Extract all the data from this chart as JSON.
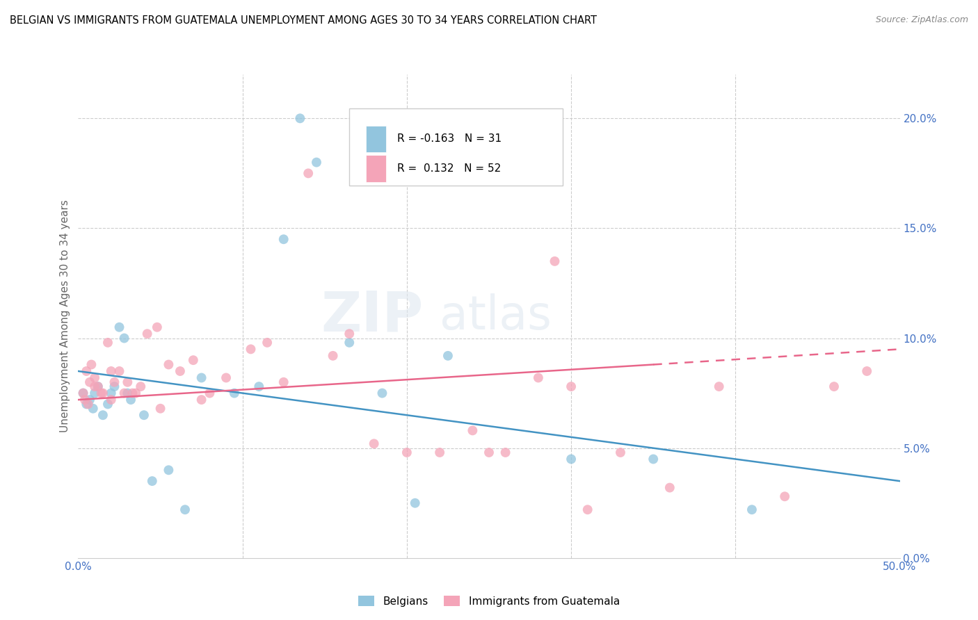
{
  "title": "BELGIAN VS IMMIGRANTS FROM GUATEMALA UNEMPLOYMENT AMONG AGES 30 TO 34 YEARS CORRELATION CHART",
  "source": "Source: ZipAtlas.com",
  "ylabel": "Unemployment Among Ages 30 to 34 years",
  "legend_1_label": "Belgians",
  "legend_2_label": "Immigrants from Guatemala",
  "R1": -0.163,
  "N1": 31,
  "R2": 0.132,
  "N2": 52,
  "color_blue": "#92c5de",
  "color_pink": "#f4a4b8",
  "line_blue": "#4393c3",
  "line_pink": "#e8668a",
  "blue_scatter_x": [
    0.3,
    0.5,
    0.7,
    0.9,
    1.0,
    1.2,
    1.5,
    1.8,
    2.0,
    2.2,
    2.5,
    2.8,
    3.0,
    3.2,
    4.0,
    4.5,
    5.5,
    6.5,
    7.5,
    9.5,
    11.0,
    12.5,
    13.5,
    14.5,
    16.5,
    18.5,
    20.5,
    22.5,
    30.0,
    35.0,
    41.0
  ],
  "blue_scatter_y": [
    7.5,
    7.0,
    7.2,
    6.8,
    7.5,
    7.8,
    6.5,
    7.0,
    7.5,
    7.8,
    10.5,
    10.0,
    7.5,
    7.2,
    6.5,
    3.5,
    4.0,
    2.2,
    8.2,
    7.5,
    7.8,
    14.5,
    20.0,
    18.0,
    9.8,
    7.5,
    2.5,
    9.2,
    4.5,
    4.5,
    2.2
  ],
  "pink_scatter_x": [
    0.3,
    0.5,
    0.7,
    0.8,
    1.0,
    1.2,
    1.5,
    1.8,
    2.0,
    2.2,
    2.5,
    2.8,
    3.0,
    3.3,
    3.8,
    4.2,
    4.8,
    5.5,
    6.2,
    7.0,
    8.0,
    9.0,
    10.5,
    11.5,
    12.5,
    14.0,
    15.5,
    16.5,
    18.0,
    20.0,
    22.0,
    24.0,
    25.0,
    26.0,
    28.0,
    29.0,
    30.0,
    31.0,
    33.0,
    36.0,
    39.0,
    43.0,
    46.0,
    48.0,
    0.4,
    0.6,
    1.0,
    1.4,
    2.0,
    3.5,
    5.0,
    7.5
  ],
  "pink_scatter_y": [
    7.5,
    8.5,
    8.0,
    8.8,
    8.2,
    7.8,
    7.5,
    9.8,
    8.5,
    8.0,
    8.5,
    7.5,
    8.0,
    7.5,
    7.8,
    10.2,
    10.5,
    8.8,
    8.5,
    9.0,
    7.5,
    8.2,
    9.5,
    9.8,
    8.0,
    17.5,
    9.2,
    10.2,
    5.2,
    4.8,
    4.8,
    5.8,
    4.8,
    4.8,
    8.2,
    13.5,
    7.8,
    2.2,
    4.8,
    3.2,
    7.8,
    2.8,
    7.8,
    8.5,
    7.2,
    7.0,
    7.8,
    7.5,
    7.2,
    7.5,
    6.8,
    7.2
  ]
}
